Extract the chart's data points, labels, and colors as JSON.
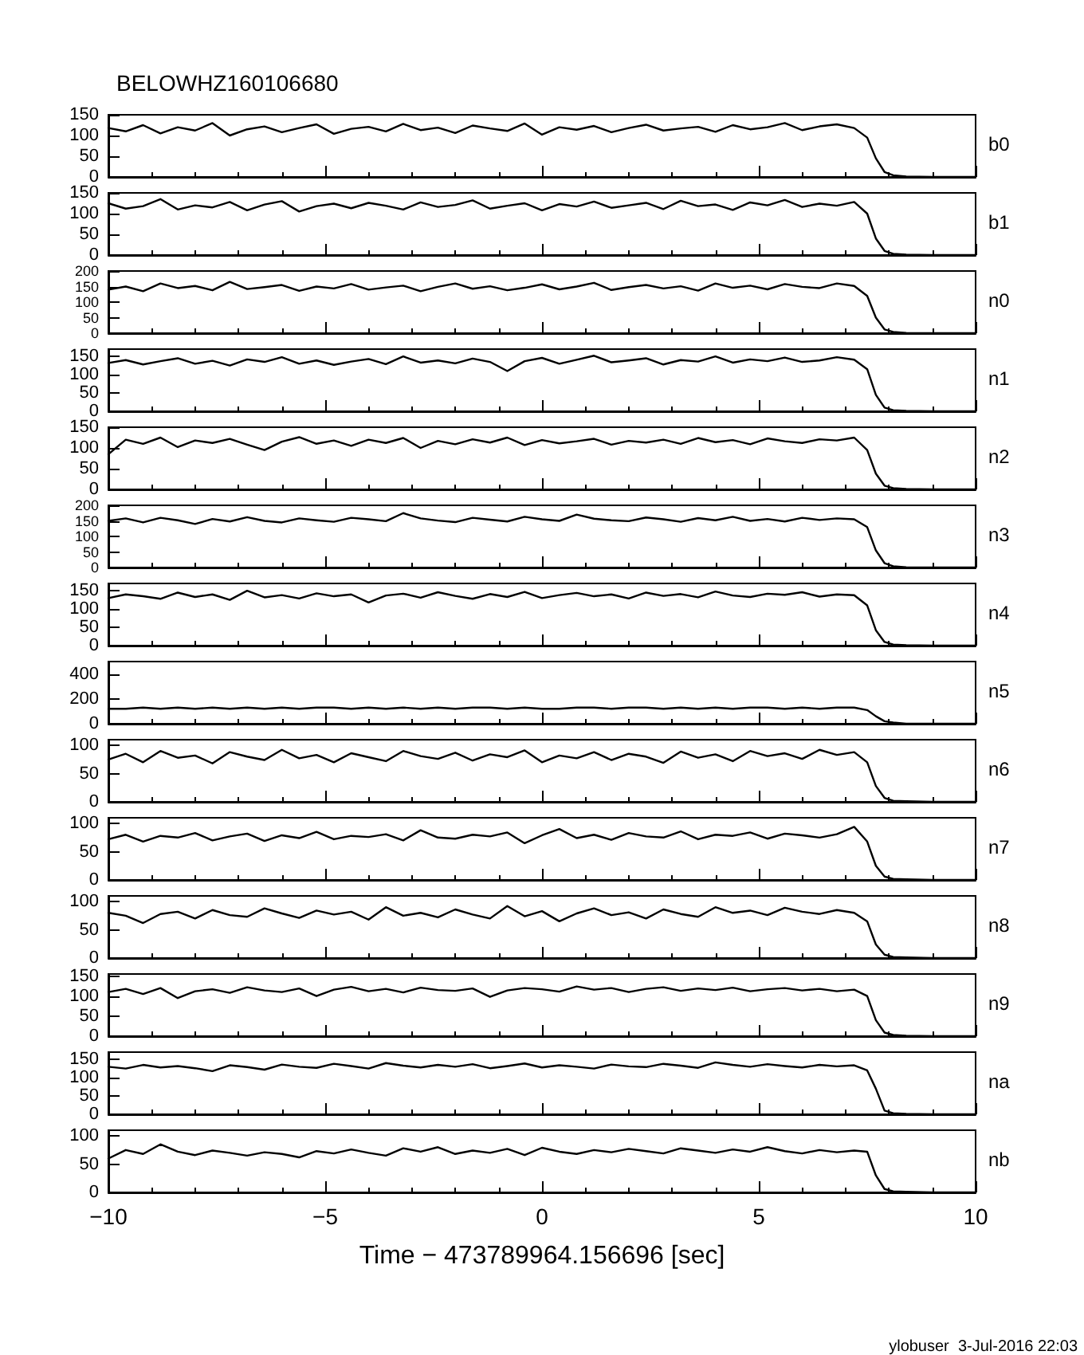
{
  "chart_data": [
    {
      "type": "line",
      "title": "BELOWHZ160106680",
      "x": [
        -10,
        -9.6,
        -9.2,
        -8.8,
        -8.4,
        -8,
        -7.6,
        -7.2,
        -6.8,
        -6.4,
        -6,
        -5.6,
        -5.2,
        -4.8,
        -4.4,
        -4,
        -3.6,
        -3.2,
        -2.8,
        -2.4,
        -2,
        -1.6,
        -1.2,
        -0.8,
        -0.4,
        0,
        0.4,
        0.8,
        1.2,
        1.6,
        2,
        2.4,
        2.8,
        3.2,
        3.6,
        4,
        4.4,
        4.8,
        5.2,
        5.6,
        6,
        6.4,
        6.8,
        7.2,
        7.5,
        7.7,
        7.9,
        8.1,
        8.4,
        9,
        10
      ],
      "xlim": [
        -10,
        10
      ],
      "xticks": [
        -10,
        -5,
        0,
        5,
        10
      ],
      "ylim": [
        0,
        150
      ],
      "yticks": [
        0,
        50,
        100,
        150
      ],
      "tick_labels": "y",
      "grid": false,
      "legend": false,
      "marker": "none",
      "line_style": "solid",
      "series": [
        {
          "name": "b0",
          "color": "#000000",
          "values": [
            118,
            110,
            125,
            105,
            120,
            112,
            130,
            100,
            115,
            122,
            108,
            118,
            127,
            104,
            116,
            121,
            110,
            128,
            113,
            119,
            106,
            124,
            117,
            111,
            129,
            102,
            120,
            114,
            123,
            108,
            118,
            126,
            112,
            117,
            121,
            109,
            125,
            115,
            120,
            130,
            113,
            122,
            127,
            118,
            95,
            45,
            12,
            4,
            1,
            0,
            0
          ]
        }
      ]
    },
    {
      "type": "line",
      "x": [
        -10,
        -9.6,
        -9.2,
        -8.8,
        -8.4,
        -8,
        -7.6,
        -7.2,
        -6.8,
        -6.4,
        -6,
        -5.6,
        -5.2,
        -4.8,
        -4.4,
        -4,
        -3.6,
        -3.2,
        -2.8,
        -2.4,
        -2,
        -1.6,
        -1.2,
        -0.8,
        -0.4,
        0,
        0.4,
        0.8,
        1.2,
        1.6,
        2,
        2.4,
        2.8,
        3.2,
        3.6,
        4,
        4.4,
        4.8,
        5.2,
        5.6,
        6,
        6.4,
        6.8,
        7.2,
        7.5,
        7.7,
        7.9,
        8.1,
        8.4,
        9,
        10
      ],
      "xlim": [
        -10,
        10
      ],
      "xticks": [
        -10,
        -5,
        0,
        5,
        10
      ],
      "ylim": [
        0,
        150
      ],
      "yticks": [
        0,
        50,
        100,
        150
      ],
      "tick_labels": "y",
      "grid": false,
      "legend": false,
      "marker": "none",
      "line_style": "solid",
      "series": [
        {
          "name": "b1",
          "color": "#000000",
          "values": [
            125,
            112,
            118,
            135,
            110,
            120,
            115,
            128,
            108,
            122,
            130,
            105,
            118,
            124,
            113,
            126,
            119,
            110,
            127,
            116,
            121,
            132,
            112,
            119,
            125,
            108,
            123,
            117,
            129,
            114,
            120,
            126,
            111,
            131,
            118,
            122,
            109,
            127,
            120,
            133,
            116,
            124,
            119,
            128,
            100,
            40,
            10,
            3,
            1,
            0,
            0
          ]
        }
      ]
    },
    {
      "type": "line",
      "x": [
        -10,
        -9.6,
        -9.2,
        -8.8,
        -8.4,
        -8,
        -7.6,
        -7.2,
        -6.8,
        -6.4,
        -6,
        -5.6,
        -5.2,
        -4.8,
        -4.4,
        -4,
        -3.6,
        -3.2,
        -2.8,
        -2.4,
        -2,
        -1.6,
        -1.2,
        -0.8,
        -0.4,
        0,
        0.4,
        0.8,
        1.2,
        1.6,
        2,
        2.4,
        2.8,
        3.2,
        3.6,
        4,
        4.4,
        4.8,
        5.2,
        5.6,
        6,
        6.4,
        6.8,
        7.2,
        7.5,
        7.7,
        7.9,
        8.1,
        8.4,
        9,
        10
      ],
      "xlim": [
        -10,
        10
      ],
      "xticks": [
        -10,
        -5,
        0,
        5,
        10
      ],
      "ylim": [
        0,
        200
      ],
      "yticks": [
        0,
        50,
        100,
        150,
        200
      ],
      "tick_labels": "y",
      "grid": false,
      "legend": false,
      "marker": "none",
      "line_style": "solid",
      "series": [
        {
          "name": "n0",
          "color": "#000000",
          "values": [
            140,
            150,
            135,
            160,
            145,
            152,
            138,
            165,
            142,
            148,
            155,
            136,
            150,
            144,
            158,
            140,
            147,
            153,
            135,
            149,
            160,
            143,
            151,
            138,
            146,
            157,
            141,
            150,
            162,
            139,
            148,
            155,
            144,
            151,
            137,
            160,
            146,
            153,
            141,
            158,
            149,
            145,
            160,
            152,
            120,
            50,
            12,
            4,
            1,
            0,
            0
          ]
        }
      ]
    },
    {
      "type": "line",
      "x": [
        -10,
        -9.6,
        -9.2,
        -8.8,
        -8.4,
        -8,
        -7.6,
        -7.2,
        -6.8,
        -6.4,
        -6,
        -5.6,
        -5.2,
        -4.8,
        -4.4,
        -4,
        -3.6,
        -3.2,
        -2.8,
        -2.4,
        -2,
        -1.6,
        -1.2,
        -0.8,
        -0.4,
        0,
        0.4,
        0.8,
        1.2,
        1.6,
        2,
        2.4,
        2.8,
        3.2,
        3.6,
        4,
        4.4,
        4.8,
        5.2,
        5.6,
        6,
        6.4,
        6.8,
        7.2,
        7.5,
        7.7,
        7.9,
        8.1,
        8.4,
        9,
        10
      ],
      "xlim": [
        -10,
        10
      ],
      "xticks": [
        -10,
        -5,
        0,
        5,
        10
      ],
      "ylim": [
        0,
        170
      ],
      "yticks": [
        0,
        50,
        100,
        150
      ],
      "tick_labels": "y",
      "grid": false,
      "legend": false,
      "marker": "none",
      "line_style": "solid",
      "series": [
        {
          "name": "n1",
          "color": "#000000",
          "values": [
            132,
            140,
            128,
            137,
            145,
            130,
            138,
            125,
            142,
            135,
            148,
            130,
            139,
            127,
            136,
            143,
            129,
            150,
            133,
            139,
            131,
            144,
            135,
            110,
            137,
            146,
            130,
            141,
            152,
            134,
            139,
            145,
            128,
            140,
            136,
            150,
            133,
            142,
            137,
            147,
            135,
            139,
            148,
            141,
            115,
            45,
            10,
            3,
            1,
            0,
            0
          ]
        }
      ]
    },
    {
      "type": "line",
      "x": [
        -10,
        -9.6,
        -9.2,
        -8.8,
        -8.4,
        -8,
        -7.6,
        -7.2,
        -6.8,
        -6.4,
        -6,
        -5.6,
        -5.2,
        -4.8,
        -4.4,
        -4,
        -3.6,
        -3.2,
        -2.8,
        -2.4,
        -2,
        -1.6,
        -1.2,
        -0.8,
        -0.4,
        0,
        0.4,
        0.8,
        1.2,
        1.6,
        2,
        2.4,
        2.8,
        3.2,
        3.6,
        4,
        4.4,
        4.8,
        5.2,
        5.6,
        6,
        6.4,
        6.8,
        7.2,
        7.5,
        7.7,
        7.9,
        8.1,
        8.4,
        9,
        10
      ],
      "xlim": [
        -10,
        10
      ],
      "xticks": [
        -10,
        -5,
        0,
        5,
        10
      ],
      "ylim": [
        0,
        150
      ],
      "yticks": [
        0,
        50,
        100,
        150
      ],
      "tick_labels": "y",
      "grid": false,
      "legend": false,
      "marker": "none",
      "line_style": "solid",
      "series": [
        {
          "name": "n2",
          "color": "#000000",
          "values": [
            85,
            120,
            110,
            125,
            102,
            118,
            112,
            122,
            108,
            95,
            115,
            126,
            110,
            118,
            105,
            120,
            112,
            124,
            100,
            117,
            109,
            121,
            113,
            125,
            107,
            119,
            111,
            116,
            122,
            108,
            117,
            113,
            120,
            110,
            124,
            114,
            119,
            109,
            123,
            116,
            112,
            121,
            118,
            125,
            95,
            38,
            9,
            3,
            1,
            0,
            0
          ]
        }
      ]
    },
    {
      "type": "line",
      "x": [
        -10,
        -9.6,
        -9.2,
        -8.8,
        -8.4,
        -8,
        -7.6,
        -7.2,
        -6.8,
        -6.4,
        -6,
        -5.6,
        -5.2,
        -4.8,
        -4.4,
        -4,
        -3.6,
        -3.2,
        -2.8,
        -2.4,
        -2,
        -1.6,
        -1.2,
        -0.8,
        -0.4,
        0,
        0.4,
        0.8,
        1.2,
        1.6,
        2,
        2.4,
        2.8,
        3.2,
        3.6,
        4,
        4.4,
        4.8,
        5.2,
        5.6,
        6,
        6.4,
        6.8,
        7.2,
        7.5,
        7.7,
        7.9,
        8.1,
        8.4,
        9,
        10
      ],
      "xlim": [
        -10,
        10
      ],
      "xticks": [
        -10,
        -5,
        0,
        5,
        10
      ],
      "ylim": [
        0,
        200
      ],
      "yticks": [
        0,
        50,
        100,
        150,
        200
      ],
      "tick_labels": "y",
      "grid": false,
      "legend": false,
      "marker": "none",
      "line_style": "solid",
      "series": [
        {
          "name": "n3",
          "color": "#000000",
          "values": [
            150,
            158,
            145,
            160,
            152,
            140,
            156,
            148,
            162,
            150,
            145,
            158,
            152,
            147,
            160,
            155,
            149,
            175,
            158,
            151,
            146,
            160,
            154,
            148,
            163,
            155,
            150,
            170,
            157,
            152,
            149,
            161,
            155,
            147,
            159,
            152,
            163,
            150,
            156,
            148,
            160,
            153,
            158,
            155,
            130,
            55,
            14,
            4,
            1,
            0,
            0
          ]
        }
      ]
    },
    {
      "type": "line",
      "x": [
        -10,
        -9.6,
        -9.2,
        -8.8,
        -8.4,
        -8,
        -7.6,
        -7.2,
        -6.8,
        -6.4,
        -6,
        -5.6,
        -5.2,
        -4.8,
        -4.4,
        -4,
        -3.6,
        -3.2,
        -2.8,
        -2.4,
        -2,
        -1.6,
        -1.2,
        -0.8,
        -0.4,
        0,
        0.4,
        0.8,
        1.2,
        1.6,
        2,
        2.4,
        2.8,
        3.2,
        3.6,
        4,
        4.4,
        4.8,
        5.2,
        5.6,
        6,
        6.4,
        6.8,
        7.2,
        7.5,
        7.7,
        7.9,
        8.1,
        8.4,
        9,
        10
      ],
      "xlim": [
        -10,
        10
      ],
      "xticks": [
        -10,
        -5,
        0,
        5,
        10
      ],
      "ylim": [
        0,
        170
      ],
      "yticks": [
        0,
        50,
        100,
        150
      ],
      "tick_labels": "y",
      "grid": false,
      "legend": false,
      "marker": "none",
      "line_style": "solid",
      "series": [
        {
          "name": "n4",
          "color": "#000000",
          "values": [
            130,
            140,
            135,
            128,
            145,
            133,
            140,
            125,
            150,
            132,
            138,
            129,
            143,
            135,
            140,
            118,
            137,
            142,
            131,
            146,
            136,
            128,
            141,
            133,
            147,
            130,
            138,
            144,
            135,
            140,
            129,
            145,
            136,
            141,
            132,
            148,
            137,
            133,
            142,
            139,
            146,
            134,
            140,
            138,
            110,
            42,
            10,
            3,
            1,
            0,
            0
          ]
        }
      ]
    },
    {
      "type": "line",
      "x": [
        -10,
        -9.6,
        -9.2,
        -8.8,
        -8.4,
        -8,
        -7.6,
        -7.2,
        -6.8,
        -6.4,
        -6,
        -5.6,
        -5.2,
        -4.8,
        -4.4,
        -4,
        -3.6,
        -3.2,
        -2.8,
        -2.4,
        -2,
        -1.6,
        -1.2,
        -0.8,
        -0.4,
        0,
        0.4,
        0.8,
        1.2,
        1.6,
        2,
        2.4,
        2.8,
        3.2,
        3.6,
        4,
        4.4,
        4.8,
        5.2,
        5.6,
        6,
        6.4,
        6.8,
        7.2,
        7.5,
        7.7,
        7.9,
        8.1,
        8.4,
        9,
        10
      ],
      "xlim": [
        -10,
        10
      ],
      "xticks": [
        -10,
        -5,
        0,
        5,
        10
      ],
      "ylim": [
        0,
        500
      ],
      "yticks": [
        0,
        200,
        400
      ],
      "tick_labels": "y",
      "grid": false,
      "legend": false,
      "marker": "none",
      "line_style": "solid",
      "series": [
        {
          "name": "n5",
          "color": "#000000",
          "values": [
            120,
            120,
            130,
            120,
            130,
            120,
            130,
            120,
            130,
            120,
            130,
            120,
            130,
            130,
            120,
            130,
            120,
            130,
            120,
            130,
            120,
            130,
            130,
            120,
            130,
            120,
            120,
            130,
            130,
            120,
            130,
            130,
            120,
            130,
            120,
            130,
            120,
            130,
            130,
            120,
            130,
            120,
            130,
            130,
            110,
            60,
            20,
            10,
            0,
            0,
            0
          ]
        }
      ]
    },
    {
      "type": "line",
      "x": [
        -10,
        -9.6,
        -9.2,
        -8.8,
        -8.4,
        -8,
        -7.6,
        -7.2,
        -6.8,
        -6.4,
        -6,
        -5.6,
        -5.2,
        -4.8,
        -4.4,
        -4,
        -3.6,
        -3.2,
        -2.8,
        -2.4,
        -2,
        -1.6,
        -1.2,
        -0.8,
        -0.4,
        0,
        0.4,
        0.8,
        1.2,
        1.6,
        2,
        2.4,
        2.8,
        3.2,
        3.6,
        4,
        4.4,
        4.8,
        5.2,
        5.6,
        6,
        6.4,
        6.8,
        7.2,
        7.5,
        7.7,
        7.9,
        8.1,
        8.4,
        9,
        10
      ],
      "xlim": [
        -10,
        10
      ],
      "xticks": [
        -10,
        -5,
        0,
        5,
        10
      ],
      "ylim": [
        0,
        110
      ],
      "yticks": [
        0,
        50,
        100
      ],
      "tick_labels": "y",
      "grid": false,
      "legend": false,
      "marker": "none",
      "line_style": "solid",
      "series": [
        {
          "name": "n6",
          "color": "#000000",
          "values": [
            75,
            85,
            70,
            90,
            78,
            82,
            68,
            88,
            80,
            74,
            92,
            77,
            83,
            70,
            86,
            79,
            72,
            90,
            81,
            76,
            87,
            73,
            84,
            79,
            91,
            70,
            82,
            77,
            88,
            74,
            85,
            80,
            69,
            89,
            78,
            84,
            72,
            90,
            81,
            86,
            76,
            92,
            83,
            88,
            70,
            28,
            7,
            2,
            1,
            0,
            0
          ]
        }
      ]
    },
    {
      "type": "line",
      "x": [
        -10,
        -9.6,
        -9.2,
        -8.8,
        -8.4,
        -8,
        -7.6,
        -7.2,
        -6.8,
        -6.4,
        -6,
        -5.6,
        -5.2,
        -4.8,
        -4.4,
        -4,
        -3.6,
        -3.2,
        -2.8,
        -2.4,
        -2,
        -1.6,
        -1.2,
        -0.8,
        -0.4,
        0,
        0.4,
        0.8,
        1.2,
        1.6,
        2,
        2.4,
        2.8,
        3.2,
        3.6,
        4,
        4.4,
        4.8,
        5.2,
        5.6,
        6,
        6.4,
        6.8,
        7.2,
        7.5,
        7.7,
        7.9,
        8.1,
        8.4,
        9,
        10
      ],
      "xlim": [
        -10,
        10
      ],
      "xticks": [
        -10,
        -5,
        0,
        5,
        10
      ],
      "ylim": [
        0,
        110
      ],
      "yticks": [
        0,
        50,
        100
      ],
      "tick_labels": "y",
      "grid": false,
      "legend": false,
      "marker": "none",
      "line_style": "solid",
      "series": [
        {
          "name": "n7",
          "color": "#000000",
          "values": [
            72,
            80,
            68,
            78,
            75,
            83,
            70,
            77,
            82,
            69,
            79,
            74,
            85,
            72,
            78,
            76,
            81,
            70,
            88,
            75,
            73,
            80,
            77,
            84,
            65,
            79,
            90,
            74,
            80,
            71,
            83,
            77,
            75,
            86,
            72,
            80,
            78,
            84,
            73,
            82,
            79,
            75,
            81,
            94,
            68,
            25,
            6,
            2,
            1,
            0,
            0
          ]
        }
      ]
    },
    {
      "type": "line",
      "x": [
        -10,
        -9.6,
        -9.2,
        -8.8,
        -8.4,
        -8,
        -7.6,
        -7.2,
        -6.8,
        -6.4,
        -6,
        -5.6,
        -5.2,
        -4.8,
        -4.4,
        -4,
        -3.6,
        -3.2,
        -2.8,
        -2.4,
        -2,
        -1.6,
        -1.2,
        -0.8,
        -0.4,
        0,
        0.4,
        0.8,
        1.2,
        1.6,
        2,
        2.4,
        2.8,
        3.2,
        3.6,
        4,
        4.4,
        4.8,
        5.2,
        5.6,
        6,
        6.4,
        6.8,
        7.2,
        7.5,
        7.7,
        7.9,
        8.1,
        8.4,
        9,
        10
      ],
      "xlim": [
        -10,
        10
      ],
      "xticks": [
        -10,
        -5,
        0,
        5,
        10
      ],
      "ylim": [
        0,
        110
      ],
      "yticks": [
        0,
        50,
        100
      ],
      "tick_labels": "y",
      "grid": false,
      "legend": false,
      "marker": "none",
      "line_style": "solid",
      "series": [
        {
          "name": "n8",
          "color": "#000000",
          "values": [
            80,
            75,
            62,
            78,
            82,
            70,
            85,
            76,
            73,
            88,
            79,
            71,
            84,
            77,
            82,
            68,
            90,
            75,
            80,
            72,
            86,
            77,
            70,
            92,
            74,
            83,
            65,
            79,
            88,
            76,
            81,
            70,
            86,
            78,
            73,
            90,
            80,
            84,
            76,
            89,
            82,
            78,
            85,
            80,
            65,
            24,
            6,
            2,
            1,
            0,
            0
          ]
        }
      ]
    },
    {
      "type": "line",
      "x": [
        -10,
        -9.6,
        -9.2,
        -8.8,
        -8.4,
        -8,
        -7.6,
        -7.2,
        -6.8,
        -6.4,
        -6,
        -5.6,
        -5.2,
        -4.8,
        -4.4,
        -4,
        -3.6,
        -3.2,
        -2.8,
        -2.4,
        -2,
        -1.6,
        -1.2,
        -0.8,
        -0.4,
        0,
        0.4,
        0.8,
        1.2,
        1.6,
        2,
        2.4,
        2.8,
        3.2,
        3.6,
        4,
        4.4,
        4.8,
        5.2,
        5.6,
        6,
        6.4,
        6.8,
        7.2,
        7.5,
        7.7,
        7.9,
        8.1,
        8.4,
        9,
        10
      ],
      "xlim": [
        -10,
        10
      ],
      "xticks": [
        -10,
        -5,
        0,
        5,
        10
      ],
      "ylim": [
        0,
        155
      ],
      "yticks": [
        0,
        50,
        100,
        150
      ],
      "tick_labels": "y",
      "grid": false,
      "legend": false,
      "marker": "none",
      "line_style": "solid",
      "series": [
        {
          "name": "n9",
          "color": "#000000",
          "values": [
            110,
            118,
            105,
            120,
            95,
            112,
            117,
            108,
            122,
            114,
            110,
            119,
            100,
            116,
            123,
            112,
            118,
            109,
            121,
            115,
            113,
            119,
            98,
            114,
            120,
            117,
            111,
            124,
            116,
            120,
            110,
            118,
            122,
            113,
            119,
            115,
            121,
            112,
            117,
            120,
            114,
            118,
            112,
            116,
            100,
            40,
            9,
            3,
            1,
            0,
            0
          ]
        }
      ]
    },
    {
      "type": "line",
      "x": [
        -10,
        -9.6,
        -9.2,
        -8.8,
        -8.4,
        -8,
        -7.6,
        -7.2,
        -6.8,
        -6.4,
        -6,
        -5.6,
        -5.2,
        -4.8,
        -4.4,
        -4,
        -3.6,
        -3.2,
        -2.8,
        -2.4,
        -2,
        -1.6,
        -1.2,
        -0.8,
        -0.4,
        0,
        0.4,
        0.8,
        1.2,
        1.6,
        2,
        2.4,
        2.8,
        3.2,
        3.6,
        4,
        4.4,
        4.8,
        5.2,
        5.6,
        6,
        6.4,
        6.8,
        7.2,
        7.5,
        7.7,
        7.9,
        8.1,
        8.4,
        9,
        10
      ],
      "xlim": [
        -10,
        10
      ],
      "xticks": [
        -10,
        -5,
        0,
        5,
        10
      ],
      "ylim": [
        0,
        170
      ],
      "yticks": [
        0,
        50,
        100,
        150
      ],
      "tick_labels": "y",
      "grid": false,
      "legend": false,
      "marker": "none",
      "line_style": "solid",
      "series": [
        {
          "name": "na",
          "color": "#000000",
          "values": [
            130,
            125,
            135,
            128,
            132,
            126,
            118,
            134,
            129,
            122,
            136,
            130,
            127,
            138,
            132,
            125,
            140,
            133,
            128,
            135,
            130,
            137,
            126,
            132,
            139,
            128,
            134,
            130,
            125,
            136,
            131,
            129,
            138,
            133,
            127,
            142,
            135,
            130,
            137,
            132,
            128,
            135,
            131,
            134,
            120,
            70,
            10,
            3,
            1,
            0,
            0
          ]
        }
      ]
    },
    {
      "type": "line",
      "xlabel": "Time − 473789964.156696 [sec]",
      "annotations": [
        "ylobuser  3-Jul-2016 22:03"
      ],
      "x": [
        -10,
        -9.6,
        -9.2,
        -8.8,
        -8.4,
        -8,
        -7.6,
        -7.2,
        -6.8,
        -6.4,
        -6,
        -5.6,
        -5.2,
        -4.8,
        -4.4,
        -4,
        -3.6,
        -3.2,
        -2.8,
        -2.4,
        -2,
        -1.6,
        -1.2,
        -0.8,
        -0.4,
        0,
        0.4,
        0.8,
        1.2,
        1.6,
        2,
        2.4,
        2.8,
        3.2,
        3.6,
        4,
        4.4,
        4.8,
        5.2,
        5.6,
        6,
        6.4,
        6.8,
        7.2,
        7.5,
        7.7,
        7.9,
        8.1,
        8.4,
        9,
        10
      ],
      "xlim": [
        -10,
        10
      ],
      "xticks": [
        -10,
        -5,
        0,
        5,
        10
      ],
      "ylim": [
        0,
        110
      ],
      "yticks": [
        0,
        50,
        100
      ],
      "grid": false,
      "legend": false,
      "marker": "none",
      "line_style": "solid",
      "series": [
        {
          "name": "nb",
          "color": "#000000",
          "values": [
            60,
            75,
            68,
            85,
            72,
            66,
            74,
            70,
            65,
            71,
            68,
            62,
            73,
            69,
            76,
            70,
            65,
            78,
            72,
            80,
            68,
            74,
            70,
            77,
            66,
            79,
            72,
            68,
            75,
            71,
            77,
            73,
            69,
            78,
            74,
            70,
            76,
            72,
            80,
            73,
            69,
            75,
            71,
            74,
            72,
            30,
            6,
            2,
            1,
            0,
            0
          ]
        }
      ]
    }
  ]
}
